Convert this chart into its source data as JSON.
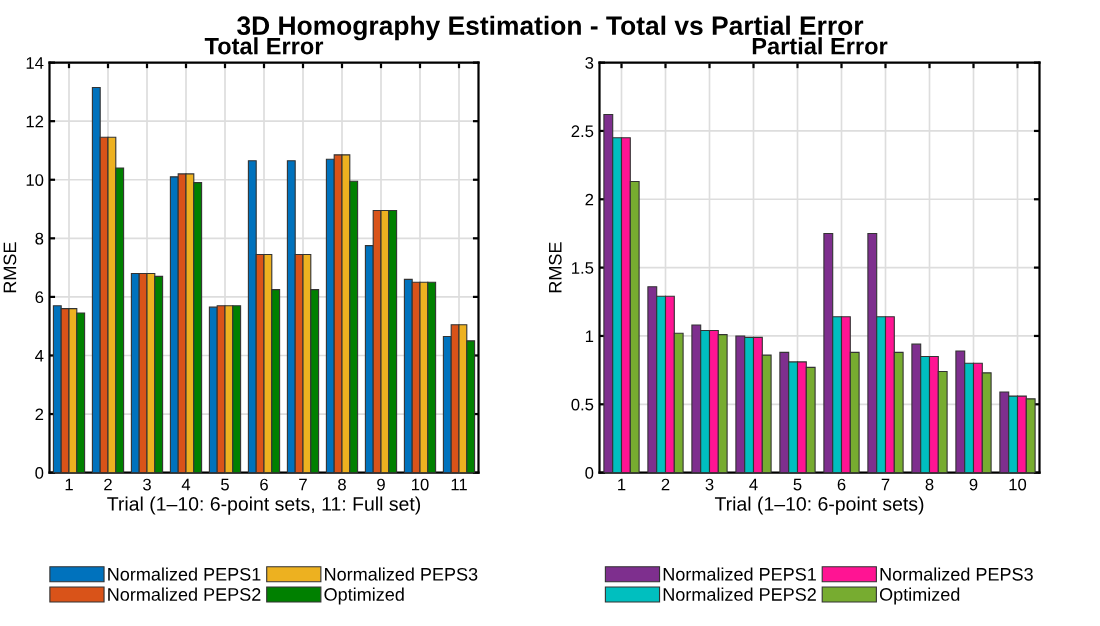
{
  "chart_data": [
    {
      "type": "bar",
      "title": "Total Error",
      "xlabel": "Trial (1–10: 6-point sets, 11: Full set)",
      "ylabel": "RMSE",
      "categories": [
        "1",
        "2",
        "3",
        "4",
        "5",
        "6",
        "7",
        "8",
        "9",
        "10",
        "11"
      ],
      "ylim": [
        0,
        14
      ],
      "yticks": [
        0,
        2,
        4,
        6,
        8,
        10,
        12,
        14
      ],
      "grid": true,
      "legend": "bottom",
      "annotations": [
        "3D Homography Estimation - Total vs Partial Error"
      ],
      "series": [
        {
          "name": "Normalized PEPS1",
          "color": "#0072bd",
          "values": [
            5.7,
            13.15,
            6.8,
            10.1,
            5.65,
            10.65,
            10.65,
            10.7,
            7.75,
            6.6,
            4.65
          ]
        },
        {
          "name": "Normalized PEPS2",
          "color": "#d95319",
          "values": [
            5.6,
            11.45,
            6.8,
            10.2,
            5.7,
            7.45,
            7.45,
            10.85,
            8.95,
            6.5,
            5.05
          ]
        },
        {
          "name": "Normalized PEPS3",
          "color": "#edb120",
          "values": [
            5.6,
            11.45,
            6.8,
            10.2,
            5.7,
            7.45,
            7.45,
            10.85,
            8.95,
            6.5,
            5.05
          ]
        },
        {
          "name": "Optimized",
          "color": "#008000",
          "values": [
            5.45,
            10.4,
            6.7,
            9.9,
            5.7,
            6.25,
            6.25,
            9.95,
            8.95,
            6.5,
            4.5
          ]
        }
      ]
    },
    {
      "type": "bar",
      "title": "Partial Error",
      "xlabel": "Trial (1–10: 6-point sets)",
      "ylabel": "RMSE",
      "categories": [
        "1",
        "2",
        "3",
        "4",
        "5",
        "6",
        "7",
        "8",
        "9",
        "10"
      ],
      "ylim": [
        0,
        3
      ],
      "yticks": [
        0,
        0.5,
        1,
        1.5,
        2,
        2.5,
        3
      ],
      "grid": true,
      "legend": "bottom",
      "series": [
        {
          "name": "Normalized PEPS1",
          "color": "#7e2f8e",
          "values": [
            2.62,
            1.36,
            1.08,
            1.0,
            0.88,
            1.75,
            1.75,
            0.94,
            0.89,
            0.59
          ]
        },
        {
          "name": "Normalized PEPS2",
          "color": "#00bfbf",
          "values": [
            2.45,
            1.29,
            1.04,
            0.99,
            0.81,
            1.14,
            1.14,
            0.85,
            0.8,
            0.56
          ]
        },
        {
          "name": "Normalized PEPS3",
          "color": "#ff1493",
          "values": [
            2.45,
            1.29,
            1.04,
            0.99,
            0.81,
            1.14,
            1.14,
            0.85,
            0.8,
            0.56
          ]
        },
        {
          "name": "Optimized",
          "color": "#77ac30",
          "values": [
            2.13,
            1.02,
            1.01,
            0.86,
            0.77,
            0.88,
            0.88,
            0.74,
            0.73,
            0.54
          ]
        }
      ]
    }
  ]
}
